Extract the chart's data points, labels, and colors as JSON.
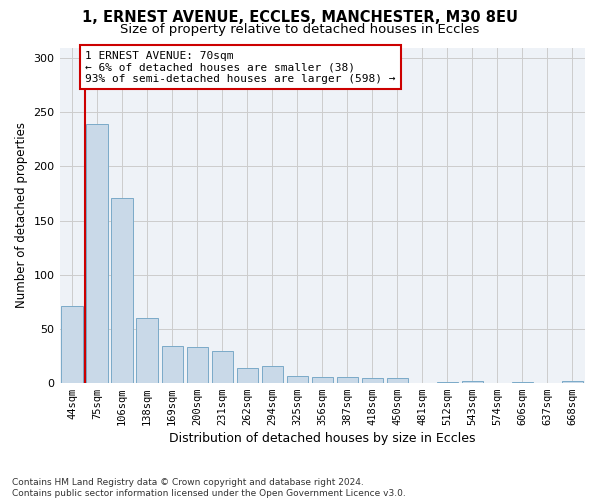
{
  "title_line1": "1, ERNEST AVENUE, ECCLES, MANCHESTER, M30 8EU",
  "title_line2": "Size of property relative to detached houses in Eccles",
  "xlabel": "Distribution of detached houses by size in Eccles",
  "ylabel": "Number of detached properties",
  "bar_labels": [
    "44sqm",
    "75sqm",
    "106sqm",
    "138sqm",
    "169sqm",
    "200sqm",
    "231sqm",
    "262sqm",
    "294sqm",
    "325sqm",
    "356sqm",
    "387sqm",
    "418sqm",
    "450sqm",
    "481sqm",
    "512sqm",
    "543sqm",
    "574sqm",
    "606sqm",
    "637sqm",
    "668sqm"
  ],
  "bar_values": [
    71,
    239,
    171,
    60,
    34,
    33,
    29,
    14,
    15,
    6,
    5,
    5,
    4,
    4,
    0,
    1,
    2,
    0,
    1,
    0,
    2
  ],
  "bar_color": "#c9d9e8",
  "bar_edge_color": "#7aaac8",
  "highlight_color": "#cc0000",
  "annotation_text": "1 ERNEST AVENUE: 70sqm\n← 6% of detached houses are smaller (38)\n93% of semi-detached houses are larger (598) →",
  "annotation_box_color": "#ffffff",
  "annotation_box_edge": "#cc0000",
  "ylim": [
    0,
    310
  ],
  "yticks": [
    0,
    50,
    100,
    150,
    200,
    250,
    300
  ],
  "grid_color": "#cccccc",
  "bg_color": "#eef2f7",
  "footnote": "Contains HM Land Registry data © Crown copyright and database right 2024.\nContains public sector information licensed under the Open Government Licence v3.0.",
  "title_fontsize": 10.5,
  "subtitle_fontsize": 9.5,
  "tick_fontsize": 7.5,
  "ylabel_fontsize": 8.5,
  "xlabel_fontsize": 9.0,
  "annot_fontsize": 8.0,
  "footnote_fontsize": 6.5
}
